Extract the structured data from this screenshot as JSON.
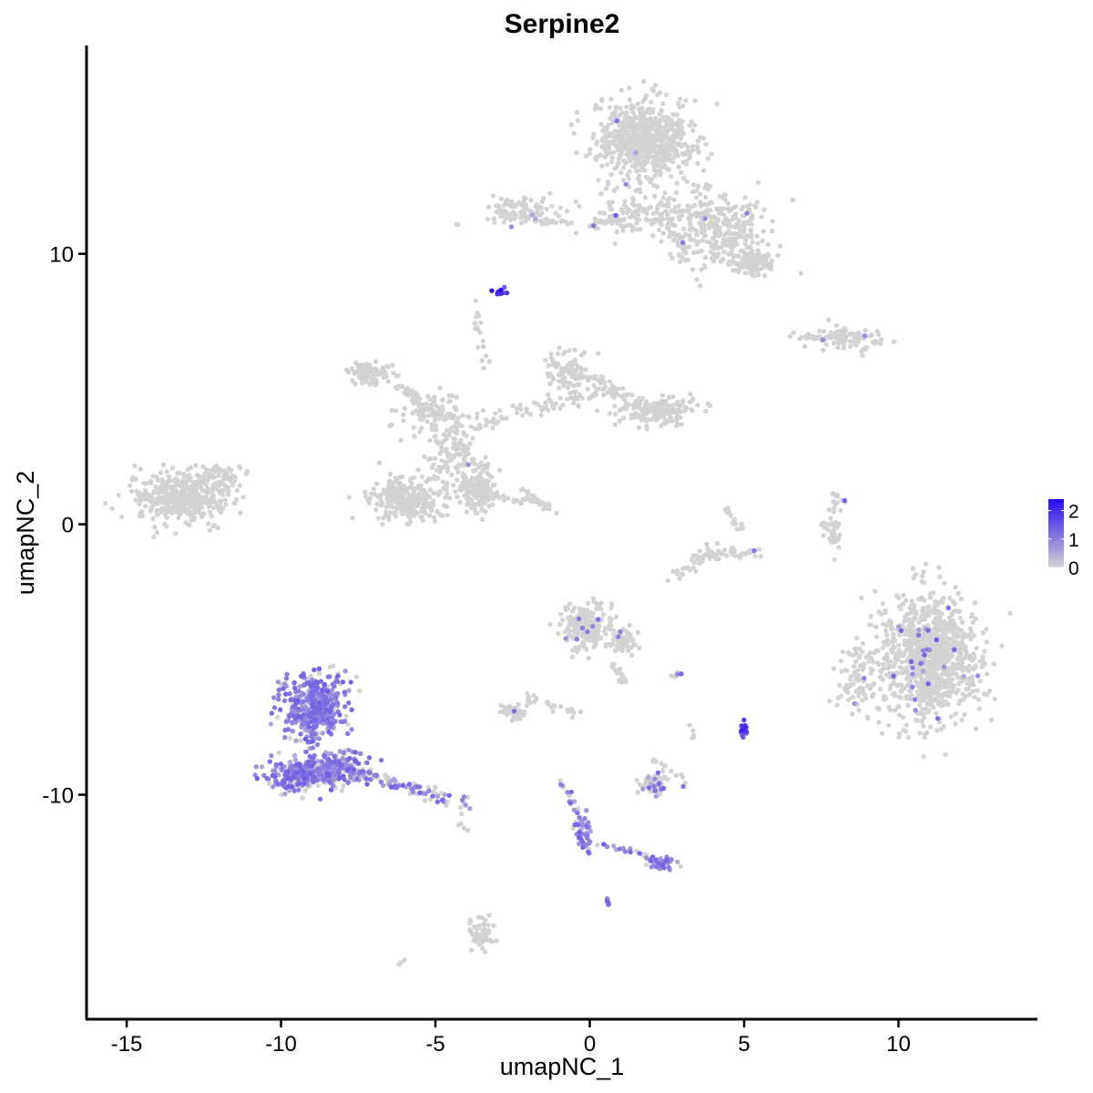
{
  "chart_data": {
    "type": "scatter",
    "title": "Serpine2",
    "xlabel": "umapNC_1",
    "ylabel": "umapNC_2",
    "xlim": [
      -16.3,
      14.5
    ],
    "ylim": [
      -18.3,
      17.7
    ],
    "x_ticks": [
      -15,
      -10,
      -5,
      0,
      5,
      10
    ],
    "x_tick_labels": [
      "-15",
      "-10",
      "-5",
      "0",
      "5",
      "10"
    ],
    "y_ticks": [
      -10,
      0,
      10
    ],
    "y_tick_labels": [
      "-10",
      "0",
      "10"
    ],
    "grid": false,
    "legend_placement": "right",
    "color_scale": {
      "low": "#d3d3d3",
      "high": "#2a0bf0",
      "range": [
        0,
        2.4
      ],
      "breaks": [
        0,
        1,
        2
      ],
      "break_labels": [
        "0",
        "1",
        "2"
      ]
    },
    "point_color_default": "#d3d3d3",
    "clusters": [
      {
        "cx": 1.8,
        "cy": 14.2,
        "sx": 1.1,
        "sy": 1.0,
        "n": 650,
        "expr": 0.02
      },
      {
        "cx": 4.2,
        "cy": 11.0,
        "sx": 1.1,
        "sy": 1.0,
        "n": 260,
        "expr": 0.03
      },
      {
        "cx": 5.3,
        "cy": 9.7,
        "sx": 0.5,
        "sy": 0.35,
        "n": 110,
        "expr": 0.02
      },
      {
        "cx": 2.0,
        "cy": 11.5,
        "sx": 1.5,
        "sy": 0.6,
        "n": 140,
        "expr": 0.03
      },
      {
        "cx": -2.4,
        "cy": 11.6,
        "sx": 0.9,
        "sy": 0.4,
        "n": 90,
        "expr": 0.04
      },
      {
        "cx": 8.3,
        "cy": 6.9,
        "sx": 0.9,
        "sy": 0.25,
        "n": 90,
        "expr": 0.06
      },
      {
        "cx": 2.1,
        "cy": 4.2,
        "sx": 0.9,
        "sy": 0.35,
        "n": 180,
        "expr": 0.0
      },
      {
        "cx": -0.7,
        "cy": 5.6,
        "sx": 0.5,
        "sy": 0.6,
        "n": 90,
        "expr": 0.0
      },
      {
        "cx": -7.1,
        "cy": 5.6,
        "sx": 0.5,
        "sy": 0.3,
        "n": 90,
        "expr": 0.0
      },
      {
        "cx": -5.3,
        "cy": 4.2,
        "sx": 0.9,
        "sy": 0.5,
        "n": 80,
        "expr": 0.0
      },
      {
        "cx": -5.9,
        "cy": 0.9,
        "sx": 0.9,
        "sy": 0.6,
        "n": 260,
        "expr": 0.0
      },
      {
        "cx": -3.5,
        "cy": 1.2,
        "sx": 0.4,
        "sy": 0.6,
        "n": 120,
        "expr": 0.01
      },
      {
        "cx": -4.5,
        "cy": 2.6,
        "sx": 0.5,
        "sy": 0.9,
        "n": 90,
        "expr": 0.0
      },
      {
        "cx": -13.3,
        "cy": 1.0,
        "sx": 1.0,
        "sy": 0.7,
        "n": 420,
        "expr": 0.0
      },
      {
        "cx": -12.1,
        "cy": 1.8,
        "sx": 0.6,
        "sy": 0.4,
        "n": 60,
        "expr": 0.0
      },
      {
        "cx": 11.0,
        "cy": -4.9,
        "sx": 1.1,
        "sy": 1.6,
        "n": 1000,
        "expr": 0.04
      },
      {
        "cx": 8.7,
        "cy": -5.6,
        "sx": 0.5,
        "sy": 0.9,
        "n": 90,
        "expr": 0.05
      },
      {
        "cx": -0.1,
        "cy": -3.8,
        "sx": 0.6,
        "sy": 0.6,
        "n": 200,
        "expr": 0.04
      },
      {
        "cx": 1.0,
        "cy": -4.4,
        "sx": 0.4,
        "sy": 0.4,
        "n": 60,
        "expr": 0.05
      },
      {
        "cx": -8.9,
        "cy": -6.8,
        "sx": 0.7,
        "sy": 0.9,
        "n": 420,
        "expr": 0.85
      },
      {
        "cx": -9.4,
        "cy": -9.3,
        "sx": 0.7,
        "sy": 0.4,
        "n": 230,
        "expr": 0.8
      },
      {
        "cx": -8.0,
        "cy": -9.0,
        "sx": 0.7,
        "sy": 0.5,
        "n": 140,
        "expr": 0.7
      },
      {
        "cx": -2.5,
        "cy": -6.9,
        "sx": 0.35,
        "sy": 0.2,
        "n": 50,
        "expr": 0.1
      },
      {
        "cx": 2.1,
        "cy": -9.6,
        "sx": 0.35,
        "sy": 0.25,
        "n": 70,
        "expr": 0.35
      },
      {
        "cx": 2.3,
        "cy": -12.5,
        "sx": 0.3,
        "sy": 0.15,
        "n": 50,
        "expr": 0.8
      },
      {
        "cx": -0.2,
        "cy": -11.5,
        "sx": 0.2,
        "sy": 0.5,
        "n": 45,
        "expr": 0.85
      },
      {
        "cx": -3.5,
        "cy": -15.1,
        "sx": 0.3,
        "sy": 0.5,
        "n": 60,
        "expr": 0.0
      },
      {
        "cx": 5.0,
        "cy": -7.6,
        "sx": 0.1,
        "sy": 0.2,
        "n": 20,
        "expr": 1.6
      },
      {
        "cx": -2.9,
        "cy": 8.6,
        "sx": 0.15,
        "sy": 0.1,
        "n": 14,
        "expr": 1.8
      },
      {
        "cx": 7.9,
        "cy": -0.2,
        "sx": 0.2,
        "sy": 0.7,
        "n": 40,
        "expr": 0.0
      }
    ],
    "trails": [
      {
        "from": [
          -8.5,
          -8.8
        ],
        "to": [
          -3.9,
          -10.4
        ],
        "n": 120,
        "spread": 0.25,
        "expr": 0.55
      },
      {
        "from": [
          -4.5,
          4.0
        ],
        "to": [
          -3.8,
          1.0
        ],
        "n": 60,
        "spread": 0.3,
        "expr": 0.0
      },
      {
        "from": [
          -4.2,
          3.5
        ],
        "to": [
          0.2,
          4.9
        ],
        "n": 70,
        "spread": 0.3,
        "expr": 0.0
      },
      {
        "from": [
          0.0,
          5.5
        ],
        "to": [
          1.2,
          4.6
        ],
        "n": 40,
        "spread": 0.25,
        "expr": 0.0
      },
      {
        "from": [
          -6.3,
          5.2
        ],
        "to": [
          -4.8,
          4.0
        ],
        "n": 45,
        "spread": 0.25,
        "expr": 0.0
      },
      {
        "from": [
          -4.8,
          1.5
        ],
        "to": [
          -1.2,
          0.6
        ],
        "n": 45,
        "spread": 0.2,
        "expr": 0.0
      },
      {
        "from": [
          -3.8,
          8.5
        ],
        "to": [
          -3.3,
          5.5
        ],
        "n": 18,
        "spread": 0.15,
        "expr": 0.0
      },
      {
        "from": [
          -1.8,
          11.2
        ],
        "to": [
          -0.5,
          11.2
        ],
        "n": 22,
        "spread": 0.15,
        "expr": 0.0
      },
      {
        "from": [
          0.0,
          11.0
        ],
        "to": [
          1.2,
          11.4
        ],
        "n": 25,
        "spread": 0.15,
        "expr": 0.03
      },
      {
        "from": [
          2.4,
          11.2
        ],
        "to": [
          3.6,
          9.2
        ],
        "n": 25,
        "spread": 0.25,
        "expr": 0.05
      },
      {
        "from": [
          -0.4,
          -7.0
        ],
        "to": [
          -2.2,
          -6.4
        ],
        "n": 25,
        "spread": 0.2,
        "expr": 0.0
      },
      {
        "from": [
          0.5,
          -4.8
        ],
        "to": [
          1.2,
          -5.9
        ],
        "n": 20,
        "spread": 0.15,
        "expr": 0.05
      },
      {
        "from": [
          2.6,
          -5.6
        ],
        "to": [
          3.0,
          -5.5
        ],
        "n": 10,
        "spread": 0.08,
        "expr": 0.3
      },
      {
        "from": [
          -0.9,
          -9.5
        ],
        "to": [
          -0.3,
          -11.0
        ],
        "n": 15,
        "spread": 0.12,
        "expr": 0.85
      },
      {
        "from": [
          0.3,
          -11.8
        ],
        "to": [
          2.0,
          -12.3
        ],
        "n": 22,
        "spread": 0.12,
        "expr": 0.6
      },
      {
        "from": [
          2.0,
          -8.6
        ],
        "to": [
          3.0,
          -9.4
        ],
        "n": 12,
        "spread": 0.12,
        "expr": 0.25
      },
      {
        "from": [
          0.6,
          -13.8
        ],
        "to": [
          0.6,
          -14.1
        ],
        "n": 6,
        "spread": 0.05,
        "expr": 0.8
      },
      {
        "from": [
          3.2,
          -7.4
        ],
        "to": [
          3.4,
          -7.9
        ],
        "n": 6,
        "spread": 0.06,
        "expr": 0.0
      },
      {
        "from": [
          -4.2,
          -11.1
        ],
        "to": [
          -3.9,
          -11.4
        ],
        "n": 4,
        "spread": 0.05,
        "expr": 0.0
      },
      {
        "from": [
          -6.2,
          -16.3
        ],
        "to": [
          -6.0,
          -16.1
        ],
        "n": 3,
        "spread": 0.03,
        "expr": 0.0
      },
      {
        "from": [
          6.5,
          7.0
        ],
        "to": [
          8.0,
          6.8
        ],
        "n": 18,
        "spread": 0.1,
        "expr": 0.1
      },
      {
        "from": [
          8.7,
          6.3
        ],
        "to": [
          9.5,
          6.9
        ],
        "n": 10,
        "spread": 0.1,
        "expr": 0.05
      },
      {
        "from": [
          2.8,
          -2.0
        ],
        "to": [
          4.2,
          -0.7
        ],
        "n": 28,
        "spread": 0.25,
        "expr": 0.0
      },
      {
        "from": [
          3.3,
          -1.2
        ],
        "to": [
          5.5,
          -1.0
        ],
        "n": 50,
        "spread": 0.2,
        "expr": 0.02
      },
      {
        "from": [
          4.3,
          0.6
        ],
        "to": [
          5.1,
          -0.3
        ],
        "n": 15,
        "spread": 0.15,
        "expr": 0.05
      },
      {
        "from": [
          -2.2,
          1.3
        ],
        "to": [
          -1.3,
          0.6
        ],
        "n": 20,
        "spread": 0.08,
        "expr": 0.0
      },
      {
        "from": [
          7.8,
          1.2
        ],
        "to": [
          8.3,
          0.8
        ],
        "n": 8,
        "spread": 0.06,
        "expr": 0.05
      }
    ]
  }
}
